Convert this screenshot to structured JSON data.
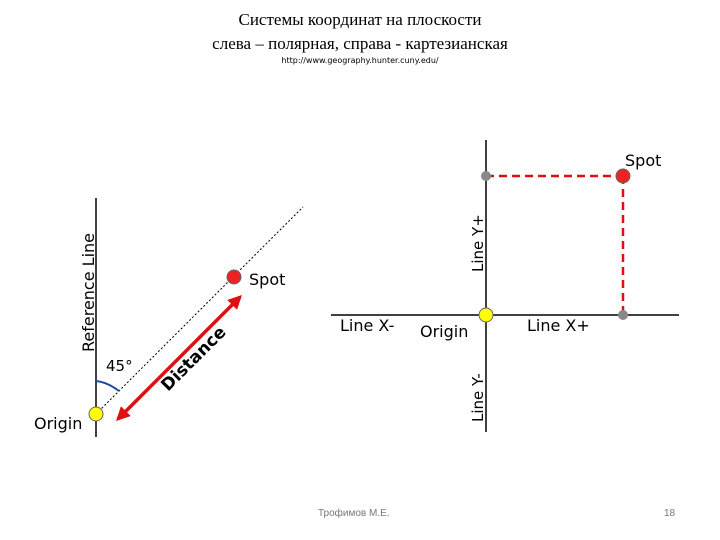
{
  "slide": {
    "title_line1": "Системы координат на плоскости",
    "title_line2": "слева – полярная, справа - картезианская",
    "source_url": "http://www.geography.hunter.cuny.edu/",
    "author": "Трофимов М.Е.",
    "page_number": "18"
  },
  "polar": {
    "reference_line_label": "Reference Line",
    "spot_label": "Spot",
    "angle_label": "45°",
    "distance_label": "Distance",
    "origin_label": "Origin"
  },
  "cartesian": {
    "spot_label": "Spot",
    "line_y_plus": "Line Y+",
    "line_y_minus": "Line Y-",
    "line_x_minus": "Line X-",
    "line_x_plus": "Line X+",
    "origin_label": "Origin"
  },
  "colors": {
    "origin_point": "#ffff00",
    "spot_point": "#ee2222",
    "distance_arrow": "#dd1111",
    "projection_dash": "#dd1111",
    "angle_arc": "#1a4ba0",
    "gray_point": "#888888"
  }
}
